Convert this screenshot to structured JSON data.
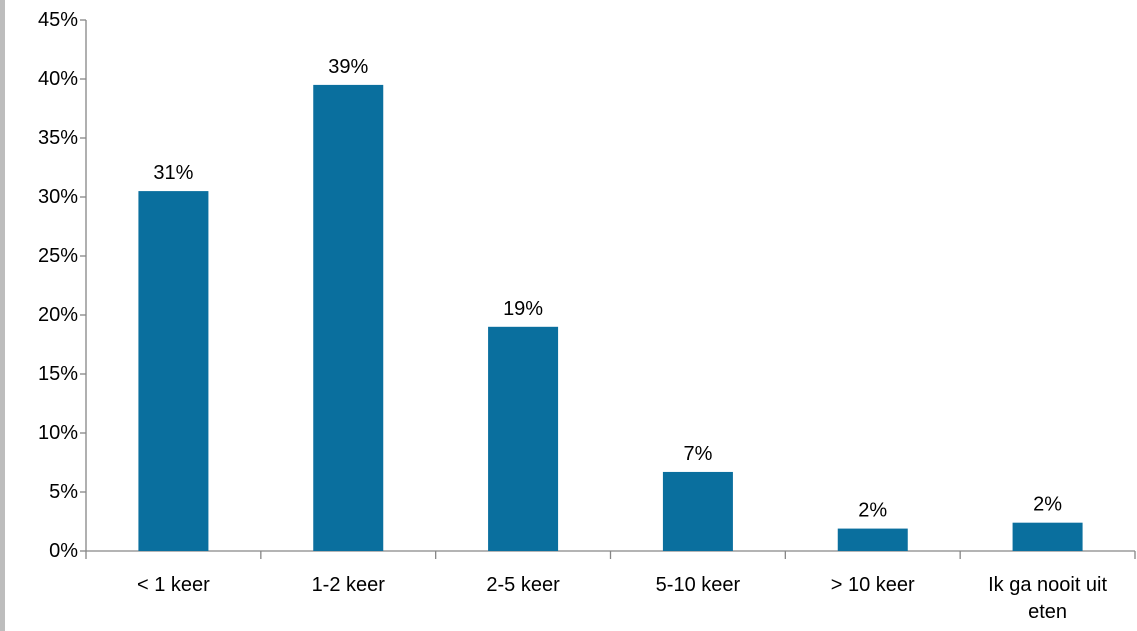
{
  "chart_data": {
    "type": "bar",
    "title": "",
    "xlabel": "",
    "ylabel": "",
    "categories": [
      "< 1 keer",
      "1-2 keer",
      "2-5 keer",
      "5-10 keer",
      "> 10 keer",
      "Ik ga nooit uit eten"
    ],
    "values": [
      30.5,
      39.5,
      19.0,
      6.7,
      1.9,
      2.4
    ],
    "data_labels": [
      "31%",
      "39%",
      "19%",
      "7%",
      "2%",
      "2%"
    ],
    "ylim": [
      0,
      45
    ],
    "yticks": [
      0,
      5,
      10,
      15,
      20,
      25,
      30,
      35,
      40,
      45
    ],
    "ytick_labels": [
      "0%",
      "5%",
      "10%",
      "15%",
      "20%",
      "25%",
      "30%",
      "35%",
      "40%",
      "45%"
    ],
    "bar_color": "#0a6f9e",
    "grid": false,
    "legend": "none"
  }
}
